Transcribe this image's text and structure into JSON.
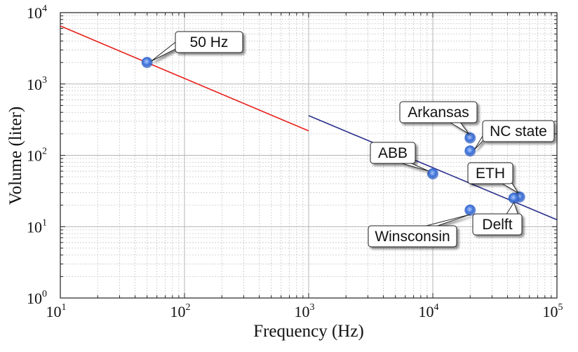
{
  "chart_data": {
    "type": "scatter",
    "title": "",
    "xlabel": "Frequency (Hz)",
    "ylabel": "Volume (liter)",
    "xscale": "log",
    "yscale": "log",
    "xlim": [
      10,
      100000
    ],
    "ylim": [
      1,
      10000
    ],
    "grid": true,
    "x_ticks": [
      {
        "base": "10",
        "exp": "1"
      },
      {
        "base": "10",
        "exp": "2"
      },
      {
        "base": "10",
        "exp": "3"
      },
      {
        "base": "10",
        "exp": "4"
      },
      {
        "base": "10",
        "exp": "5"
      }
    ],
    "y_ticks": [
      {
        "base": "10",
        "exp": "0"
      },
      {
        "base": "10",
        "exp": "1"
      },
      {
        "base": "10",
        "exp": "2"
      },
      {
        "base": "10",
        "exp": "3"
      },
      {
        "base": "10",
        "exp": "4"
      }
    ],
    "trend_lines": [
      {
        "color": "#e8201c",
        "points": [
          [
            10,
            6500
          ],
          [
            1000,
            220
          ]
        ]
      },
      {
        "color": "#2a2f8a",
        "points": [
          [
            1000,
            360
          ],
          [
            100000,
            12.5
          ]
        ]
      }
    ],
    "points": [
      {
        "label": "50 Hz",
        "x": 50,
        "y": 2000
      },
      {
        "label": "Arkansas",
        "x": 20000,
        "y": 175
      },
      {
        "label": "NC state",
        "x": 20000,
        "y": 115
      },
      {
        "label": "ABB",
        "x": 10000,
        "y": 55
      },
      {
        "label": "ETH",
        "x": 50000,
        "y": 26
      },
      {
        "label": "Winsconsin",
        "x": 20000,
        "y": 17
      },
      {
        "label": "Delft",
        "x": 45000,
        "y": 25
      }
    ],
    "marker_color": "#3b6fd6"
  }
}
